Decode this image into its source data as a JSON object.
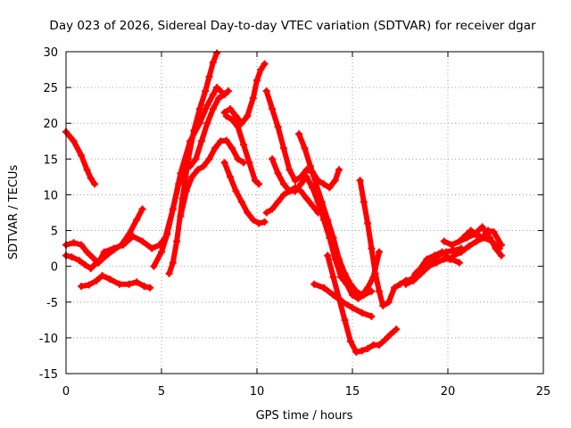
{
  "chart_data": {
    "type": "scatter",
    "title": "Day 023 of 2026, Sidereal Day-to-day VTEC variation (SDTVAR) for receiver dgar",
    "xlabel": "GPS time / hours",
    "ylabel": "SDTVAR / TECUs",
    "xlim": [
      0,
      25
    ],
    "ylim": [
      -15,
      30
    ],
    "xticks": [
      0,
      5,
      10,
      15,
      20,
      25
    ],
    "yticks": [
      -15,
      -10,
      -5,
      0,
      5,
      10,
      15,
      20,
      25,
      30
    ],
    "grid": true,
    "marker": "plus",
    "color": "#ff0000",
    "series": [
      {
        "x": [
          0.0,
          0.4,
          0.8,
          1.1,
          1.3,
          1.5
        ],
        "y": [
          18.8,
          17.5,
          15.5,
          13.5,
          12.3,
          11.5
        ]
      },
      {
        "x": [
          0.0,
          0.4,
          0.8,
          1.1,
          1.4,
          1.7,
          2.0,
          2.5,
          3.0,
          3.5,
          4.0,
          4.5,
          4.9,
          5.2,
          5.6,
          6.0,
          6.5,
          7.0,
          7.4,
          7.7,
          7.9,
          8.1
        ],
        "y": [
          3.0,
          3.3,
          3.0,
          2.0,
          1.2,
          0.5,
          2.0,
          2.5,
          3.0,
          4.2,
          3.5,
          2.5,
          3.0,
          4.0,
          8.0,
          13.0,
          17.5,
          20.0,
          22.5,
          24.0,
          25.0,
          24.5
        ]
      },
      {
        "x": [
          0.0,
          0.3,
          0.7,
          1.0,
          1.3,
          1.6,
          1.9,
          2.2,
          2.5,
          2.9,
          3.3,
          3.7,
          4.0
        ],
        "y": [
          1.5,
          1.3,
          0.8,
          0.2,
          -0.3,
          0.5,
          1.0,
          1.7,
          2.3,
          3.0,
          4.5,
          6.5,
          8.0
        ]
      },
      {
        "x": [
          0.8,
          1.2,
          1.6,
          1.9,
          2.3,
          2.8,
          3.3,
          3.7,
          4.1,
          4.4
        ],
        "y": [
          -2.8,
          -2.6,
          -2.0,
          -1.3,
          -1.8,
          -2.5,
          -2.5,
          -2.2,
          -2.8,
          -3.0
        ]
      },
      {
        "x": [
          4.6,
          5.0,
          5.3,
          5.6,
          5.9,
          6.2,
          6.5,
          6.8,
          7.1,
          7.4,
          7.7,
          8.0,
          8.3,
          8.5
        ],
        "y": [
          0.0,
          2.0,
          4.5,
          8.0,
          11.5,
          13.5,
          14.0,
          15.0,
          17.5,
          20.0,
          22.0,
          23.5,
          24.0,
          24.5
        ]
      },
      {
        "x": [
          5.4,
          5.6,
          5.8,
          6.1,
          6.4,
          6.7,
          7.0,
          7.3,
          7.5,
          7.7,
          7.9
        ],
        "y": [
          -1.0,
          0.5,
          3.5,
          9.5,
          15.0,
          19.0,
          22.0,
          24.5,
          26.5,
          28.5,
          29.8
        ]
      },
      {
        "x": [
          6.0,
          6.3,
          6.6,
          6.9,
          7.2,
          7.5,
          7.8,
          8.1,
          8.4,
          8.7,
          9.0,
          9.3
        ],
        "y": [
          7.0,
          10.5,
          12.5,
          13.5,
          14.0,
          15.0,
          16.5,
          17.5,
          17.6,
          16.5,
          15.0,
          14.5
        ]
      },
      {
        "x": [
          8.3,
          8.6,
          8.9,
          9.2,
          9.5,
          9.8,
          10.0,
          10.2,
          10.4
        ],
        "y": [
          21.5,
          22.0,
          21.0,
          20.0,
          21.0,
          23.5,
          26.0,
          27.5,
          28.3
        ]
      },
      {
        "x": [
          8.4,
          8.7,
          9.0,
          9.3,
          9.6,
          9.9,
          10.1
        ],
        "y": [
          21.0,
          20.5,
          19.5,
          17.0,
          14.5,
          12.0,
          11.5
        ]
      },
      {
        "x": [
          8.3,
          8.6,
          8.9,
          9.2,
          9.5,
          9.8,
          10.1,
          10.4
        ],
        "y": [
          14.5,
          12.5,
          10.5,
          9.0,
          7.5,
          6.5,
          6.0,
          6.2
        ]
      },
      {
        "x": [
          10.5,
          10.8,
          11.1,
          11.4,
          11.7,
          12.0,
          12.3,
          12.6,
          12.9,
          13.2
        ],
        "y": [
          7.5,
          8.0,
          9.0,
          10.0,
          10.5,
          11.0,
          10.5,
          9.5,
          8.5,
          7.5
        ]
      },
      {
        "x": [
          10.5,
          10.8,
          11.1,
          11.4,
          11.7,
          12.0,
          12.3,
          12.6,
          12.9,
          13.2,
          13.5,
          13.8,
          14.1,
          14.3
        ],
        "y": [
          24.5,
          22.0,
          19.5,
          16.5,
          13.5,
          12.0,
          12.5,
          13.5,
          13.2,
          12.0,
          11.5,
          11.0,
          12.0,
          13.5
        ]
      },
      {
        "x": [
          10.8,
          11.1,
          11.4,
          11.7,
          12.0,
          12.3,
          12.6,
          12.9,
          13.2,
          13.5,
          13.8,
          14.1,
          14.4,
          14.7,
          15.0,
          15.3,
          15.6,
          16.0
        ],
        "y": [
          15.0,
          13.0,
          11.5,
          10.5,
          10.5,
          11.5,
          12.5,
          11.0,
          9.0,
          6.5,
          4.0,
          1.0,
          -1.5,
          -2.5,
          -4.0,
          -4.5,
          -4.0,
          -3.5
        ]
      },
      {
        "x": [
          12.2,
          12.5,
          12.8,
          13.1,
          13.4,
          13.7,
          14.0,
          14.3,
          14.6,
          14.9,
          15.2,
          15.5,
          15.8,
          16.1,
          16.4
        ],
        "y": [
          18.5,
          16.5,
          14.0,
          11.5,
          9.0,
          6.5,
          4.0,
          1.0,
          -1.0,
          -2.5,
          -3.5,
          -4.0,
          -3.0,
          -1.5,
          2.0
        ]
      },
      {
        "x": [
          13.7,
          14.0,
          14.3,
          14.6,
          14.9,
          15.2,
          15.5,
          15.8,
          16.1,
          16.4,
          16.7,
          17.0,
          17.3
        ],
        "y": [
          1.5,
          -1.5,
          -4.5,
          -7.5,
          -10.5,
          -12.0,
          -11.8,
          -11.5,
          -11.0,
          -11.0,
          -10.3,
          -9.5,
          -8.8
        ]
      },
      {
        "x": [
          13.0,
          13.5,
          14.0,
          14.5,
          15.0,
          15.5,
          16.0
        ],
        "y": [
          -2.5,
          -3.0,
          -4.0,
          -5.0,
          -5.8,
          -6.5,
          -7.0
        ]
      },
      {
        "x": [
          15.4,
          15.6,
          15.8,
          16.0,
          16.2,
          16.4,
          16.6,
          16.9,
          17.2,
          17.5,
          17.8,
          18.1,
          18.5,
          18.9,
          19.3,
          19.7,
          20.1
        ],
        "y": [
          12.0,
          9.0,
          6.0,
          2.5,
          -1.0,
          -3.5,
          -5.5,
          -5.0,
          -3.0,
          -2.5,
          -2.0,
          -1.8,
          -0.5,
          1.0,
          1.5,
          2.0,
          1.0
        ]
      },
      {
        "x": [
          17.8,
          18.2,
          18.6,
          19.0,
          19.4,
          19.8,
          20.2,
          20.6
        ],
        "y": [
          -2.5,
          -2.0,
          -1.0,
          0.0,
          0.5,
          1.0,
          1.0,
          0.5
        ]
      },
      {
        "x": [
          18.3,
          18.7,
          19.1,
          19.5,
          19.9,
          20.3,
          20.7
        ],
        "y": [
          -1.0,
          0.0,
          0.8,
          1.5,
          2.0,
          2.2,
          2.5
        ]
      },
      {
        "x": [
          20.8,
          21.0,
          21.2,
          21.5,
          21.8,
          22.1,
          22.4,
          22.8
        ],
        "y": [
          4.0,
          4.5,
          5.0,
          4.5,
          4.0,
          5.0,
          4.8,
          3.0
        ]
      },
      {
        "x": [
          19.8,
          20.2,
          20.6,
          21.0,
          21.4,
          21.8,
          22.2,
          22.5,
          22.8
        ],
        "y": [
          3.5,
          3.0,
          3.5,
          4.0,
          4.5,
          5.5,
          4.0,
          2.5,
          1.5
        ]
      },
      {
        "x": [
          20.3,
          20.7,
          21.1,
          21.5,
          21.9,
          22.3,
          22.7
        ],
        "y": [
          1.5,
          2.0,
          2.8,
          3.5,
          4.0,
          3.5,
          2.5
        ]
      }
    ]
  }
}
